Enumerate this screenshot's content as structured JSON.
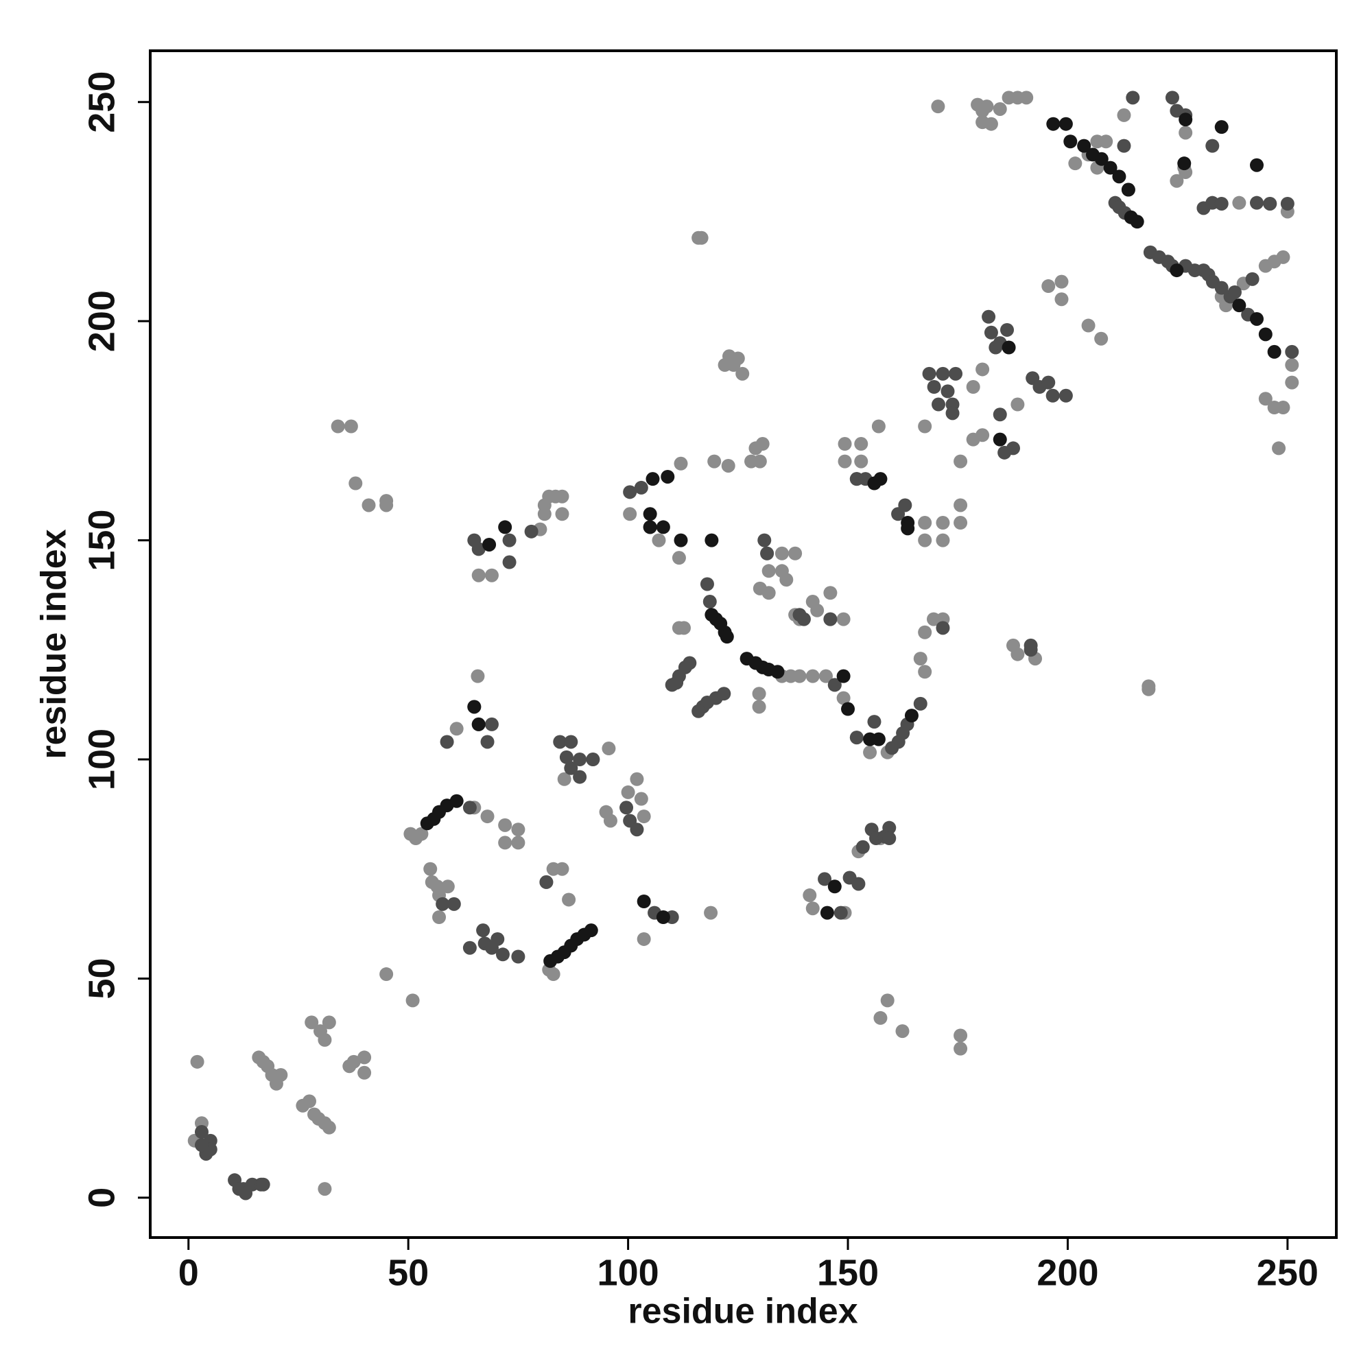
{
  "chart_data": {
    "type": "scatter",
    "xlabel": "residue index",
    "ylabel": "residue index",
    "xlim": [
      -8.7,
      261.1
    ],
    "ylim": [
      -9.1,
      261.7
    ],
    "xticks": [
      0,
      50,
      100,
      150,
      200,
      250
    ],
    "yticks": [
      0,
      50,
      100,
      150,
      200,
      250
    ],
    "grid": false,
    "series": [
      {
        "color": "#8c8c8c",
        "x": [
          2,
          3,
          1.4,
          16,
          17,
          18,
          19,
          20,
          21,
          26,
          27.5,
          28.6,
          29.6,
          31,
          32,
          28,
          30,
          32,
          31,
          31,
          36.6,
          37.6,
          40,
          40,
          45,
          51,
          34,
          37,
          38,
          41,
          45,
          45,
          50.5,
          51.7,
          53,
          55,
          55.4,
          56.6,
          57,
          57,
          59,
          65,
          68,
          72,
          72,
          75,
          75,
          81.4,
          83,
          85,
          86.5,
          82,
          83,
          65.8,
          61,
          66,
          69,
          66,
          80,
          81,
          82,
          83.5,
          85,
          85,
          81,
          85.5,
          92,
          95.6,
          95,
          96,
          100,
          102,
          103,
          103.6,
          118.8,
          103.6,
          100.4,
          112,
          111.6,
          107,
          111.6,
          112.7,
          116.7,
          116,
          119.6,
          122.8,
          123,
          124,
          125,
          126,
          122,
          128,
          129,
          130.6,
          130,
          135,
          137,
          139,
          142,
          145,
          147,
          129.8,
          129.8,
          131.6,
          132,
          130,
          132,
          135,
          135,
          136,
          138,
          138,
          139,
          142,
          143,
          146,
          146,
          149,
          149,
          152,
          155,
          159,
          166.5,
          167.5,
          167.5,
          169.5,
          171.6,
          149.3,
          149.3,
          153,
          153,
          157,
          167.5,
          167.5,
          171.6,
          171.6,
          175.6,
          175.6,
          175.6,
          167.5,
          178.5,
          180.6,
          178.5,
          180.6,
          188.6,
          195.6,
          198.6,
          198.6,
          204.7,
          207.6,
          187.6,
          188.6,
          192.6,
          218.4,
          218.4,
          141.3,
          142,
          149.3,
          152.4,
          157.4,
          159,
          157.4,
          162.4,
          175.6,
          175.6,
          170.5,
          179.5,
          180.6,
          181.6,
          182.6,
          184.6,
          186.6,
          188.6,
          190.6,
          180.6,
          201.7,
          204.7,
          206.7,
          206.7,
          208.7,
          212.8,
          226.8,
          224.8,
          226.5,
          226.8,
          235,
          236,
          240,
          245,
          247,
          249,
          245,
          247,
          249,
          248,
          251,
          251,
          246,
          250,
          239
        ],
        "y": [
          31,
          17,
          13,
          32,
          31,
          30,
          28,
          26,
          28,
          21,
          22,
          19,
          18,
          17,
          16,
          40,
          38,
          40,
          36,
          2,
          30,
          31,
          32,
          28.5,
          51,
          45,
          176,
          176,
          163,
          158,
          159,
          158,
          83,
          82,
          83,
          75,
          72,
          71,
          69,
          64,
          71,
          89,
          87,
          81,
          85,
          84,
          81,
          72,
          75,
          75,
          68,
          52,
          51,
          119,
          107,
          142,
          142,
          108,
          152.5,
          158,
          160,
          160,
          160,
          156,
          156,
          95.5,
          100,
          102.5,
          88,
          86,
          92.5,
          95.5,
          91,
          87,
          65,
          59,
          156,
          167.5,
          146,
          150,
          130,
          130,
          219,
          219,
          168,
          167,
          192,
          190,
          191.5,
          188,
          190,
          168,
          171,
          172,
          168,
          119,
          119,
          119,
          119,
          119,
          117,
          115,
          112,
          147,
          143,
          139,
          138,
          147,
          143,
          141,
          147,
          133,
          132,
          136,
          134,
          138,
          132,
          132,
          114,
          105,
          101.6,
          101.6,
          123,
          120,
          129,
          132,
          132,
          172,
          168,
          172,
          168,
          176,
          154,
          150,
          154,
          150,
          158,
          154,
          168,
          176,
          185,
          189,
          173,
          174,
          181,
          208,
          209,
          205,
          199,
          196,
          126,
          124,
          123,
          116.7,
          116,
          69,
          66,
          65,
          79,
          82,
          45,
          41,
          38,
          37,
          34,
          249,
          249.4,
          248,
          249,
          245,
          248.4,
          251,
          251,
          251,
          245.4,
          236,
          238,
          235,
          241,
          241,
          247,
          243,
          232,
          235,
          234,
          205.6,
          203.6,
          208.6,
          212.6,
          213.6,
          214.6,
          182.3,
          180.3,
          180.3,
          171,
          190,
          186,
          226.8,
          225,
          227
        ]
      },
      {
        "color": "#4d4d4d",
        "x": [
          3,
          4,
          4.4,
          5,
          4,
          5,
          3,
          10.5,
          11.5,
          12.5,
          13,
          14.5,
          16.5,
          17,
          57.8,
          60.4,
          64,
          64,
          67,
          67.4,
          69,
          70.3,
          71.5,
          75,
          81.4,
          84.5,
          87,
          86,
          87,
          89,
          89,
          92,
          99.6,
          100.4,
          102,
          65,
          58.8,
          68,
          69,
          65,
          66,
          73,
          73,
          78,
          100.4,
          103,
          105,
          110,
          111.6,
          113,
          114,
          111,
          117,
          118,
          120,
          121.8,
          116,
          118,
          118.6,
          131,
          131.6,
          139,
          140,
          146,
          147,
          152,
          152,
          156,
          160,
          161.5,
          162.5,
          163.5,
          166.5,
          171.6,
          152,
          154,
          161.4,
          163,
          168.5,
          169.6,
          170.6,
          172.7,
          173.8,
          171.6,
          174.5,
          173.8,
          182,
          182.6,
          183.6,
          184.6,
          186.2,
          184.6,
          185.6,
          187.6,
          192,
          193.6,
          195.6,
          196.6,
          199.6,
          191.6,
          191.6,
          144.7,
          148.4,
          150.4,
          152.4,
          153.4,
          155.4,
          156.4,
          158.4,
          159.4,
          159.4,
          210.8,
          211.7,
          213,
          213.8,
          214.8,
          212.8,
          218.8,
          220.8,
          222.8,
          223.8,
          226.8,
          228.9,
          230.9,
          232,
          233,
          235,
          237,
          238,
          241,
          242,
          223.8,
          224.8,
          226.8,
          232.9,
          230.9,
          232.9,
          235,
          243,
          246,
          250,
          251,
          110,
          106
        ],
        "y": [
          15,
          11,
          11,
          13,
          10,
          11,
          12,
          4,
          2,
          2,
          1,
          3,
          3,
          3,
          67,
          67,
          89,
          57,
          61,
          58,
          57,
          59,
          55.5,
          55,
          72,
          104,
          104,
          100.5,
          98,
          96,
          100,
          100,
          89,
          86,
          84,
          150,
          104,
          104,
          108,
          112,
          148,
          150,
          145,
          152,
          161,
          162,
          153,
          117,
          119,
          121,
          122,
          117.5,
          112,
          113,
          114,
          115,
          111,
          140,
          136,
          150,
          147,
          133,
          132,
          132,
          117,
          164,
          105,
          108.6,
          102.6,
          104,
          106,
          108,
          112.7,
          130,
          164,
          164,
          156,
          158,
          188,
          185,
          181,
          184,
          181,
          188,
          188,
          179,
          201,
          197.4,
          194,
          195,
          198,
          178.7,
          170,
          171,
          187,
          185,
          186,
          183,
          183,
          125,
          126,
          72.7,
          65,
          73,
          71.6,
          80,
          84,
          82,
          82.4,
          84.4,
          82,
          227,
          226,
          224.7,
          230,
          251,
          240,
          215.7,
          214.6,
          213.6,
          212.6,
          212.6,
          211.6,
          211.6,
          210.6,
          209,
          207.6,
          205.6,
          206.6,
          201.5,
          209.6,
          251,
          248,
          247,
          240,
          225.8,
          227,
          226.8,
          227,
          226.8,
          226.8,
          193,
          64,
          65
        ]
      },
      {
        "color": "#161616",
        "x": [
          54.3,
          55.8,
          57,
          58.8,
          61,
          82.3,
          84,
          85.5,
          87,
          88.4,
          90,
          91.6,
          65,
          66,
          68.4,
          72,
          105.6,
          109,
          105,
          105,
          108,
          112,
          119,
          119,
          120,
          121,
          122,
          122.5,
          127,
          129,
          130.6,
          132,
          134,
          149,
          150,
          155,
          157,
          164.5,
          156,
          157.4,
          163.6,
          163.6,
          186.6,
          184.6,
          196.7,
          199.6,
          200.6,
          203.7,
          205.7,
          207.7,
          209.7,
          211.7,
          213.8,
          215.8,
          214.4,
          224.8,
          239,
          243,
          245,
          247,
          243,
          235,
          108,
          147,
          145.3,
          103.6,
          226.8,
          226.5
        ],
        "y": [
          85.4,
          86.4,
          88,
          89.5,
          90.5,
          54,
          55,
          56,
          57.5,
          59,
          60,
          61,
          112,
          108,
          149,
          153,
          164,
          164.5,
          156,
          153,
          153,
          150,
          150,
          133,
          132,
          131,
          129,
          128,
          123,
          122,
          121,
          120.5,
          120,
          119,
          111.5,
          104.6,
          104.6,
          110,
          163,
          164,
          154,
          152.7,
          194,
          173,
          245,
          245,
          241,
          240,
          238,
          237,
          235,
          233,
          230,
          222.7,
          223.7,
          211.6,
          203.6,
          200.5,
          197,
          193,
          235.6,
          244.3,
          64,
          71,
          65,
          67.6,
          246,
          236
        ]
      }
    ]
  }
}
